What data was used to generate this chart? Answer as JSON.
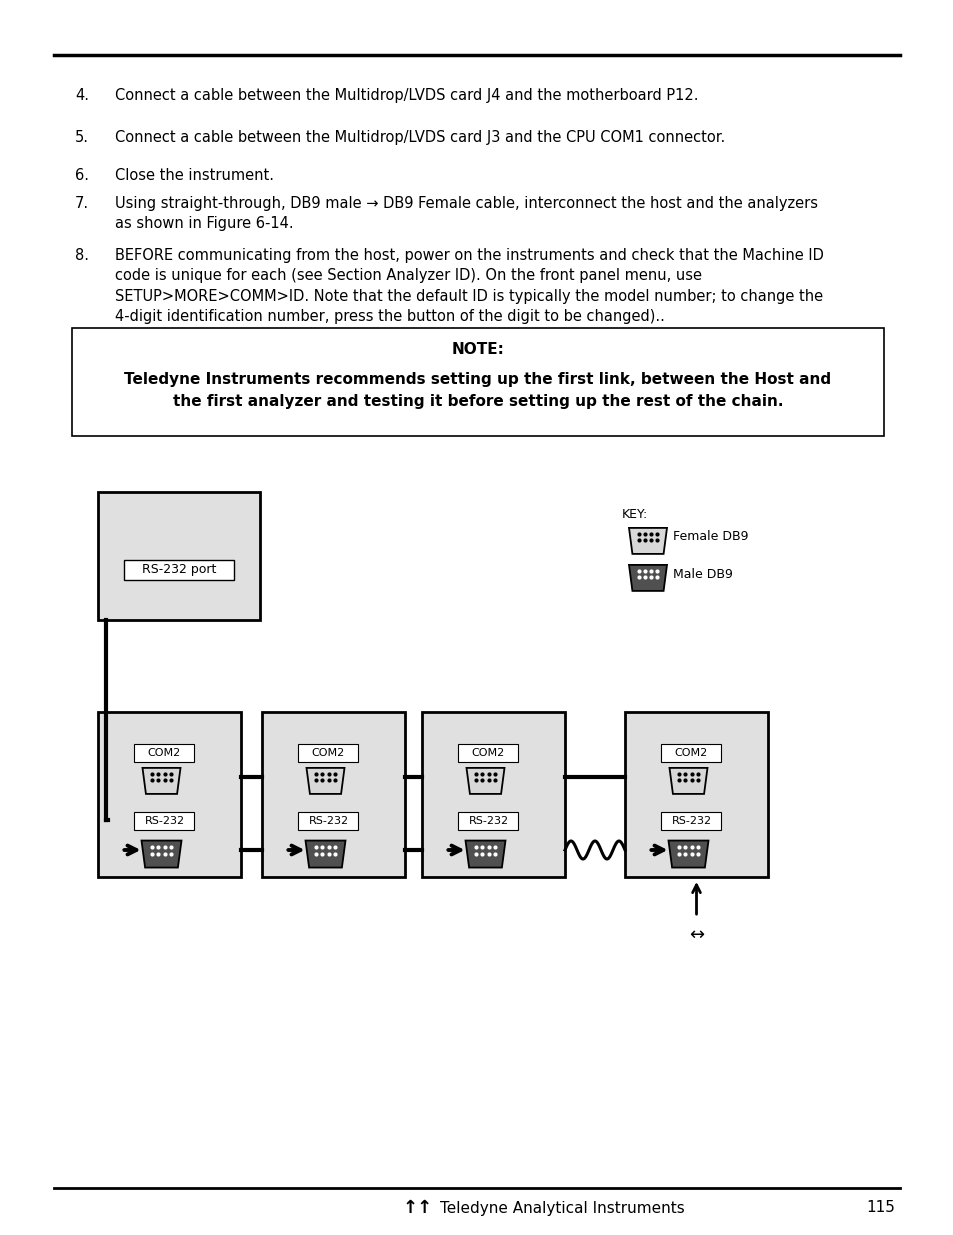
{
  "page_number": "115",
  "footer_text": "Teledyne Analytical Instruments",
  "items": [
    {
      "num": "4.",
      "text": "Connect a cable between the Multidrop/LVDS card J4 and the motherboard P12."
    },
    {
      "num": "5.",
      "text": "Connect a cable between the Multidrop/LVDS card J3 and the CPU COM1 connector."
    },
    {
      "num": "6.",
      "text": "Close the instrument."
    },
    {
      "num": "7.",
      "text": "Using straight-through, DB9 male → DB9 Female cable, interconnect the host and the analyzers\nas shown in Figure 6-14."
    },
    {
      "num": "8.",
      "text": "BEFORE communicating from the host, power on the instruments and check that the Machine ID\ncode is unique for each (see Section Analyzer ID). On the front panel menu, use\nSETUP>MORE>COMM>ID. Note that the default ID is typically the model number; to change the\n4-digit identification number, press the button of the digit to be changed).."
    }
  ],
  "note_title": "NOTE:",
  "note_body": "Teledyne Instruments recommends setting up the first link, between the Host and\nthe first analyzer and testing it before setting up the rest of the chain.",
  "key_label": "KEY:",
  "key_female": "Female DB9",
  "key_male": "Male DB9",
  "rs232_port_label": "RS-232 port",
  "com2_label": "COM2",
  "rs232_label": "RS-232",
  "bg_color": "#ffffff",
  "box_fill": "#e0e0e0",
  "text_color": "#000000"
}
